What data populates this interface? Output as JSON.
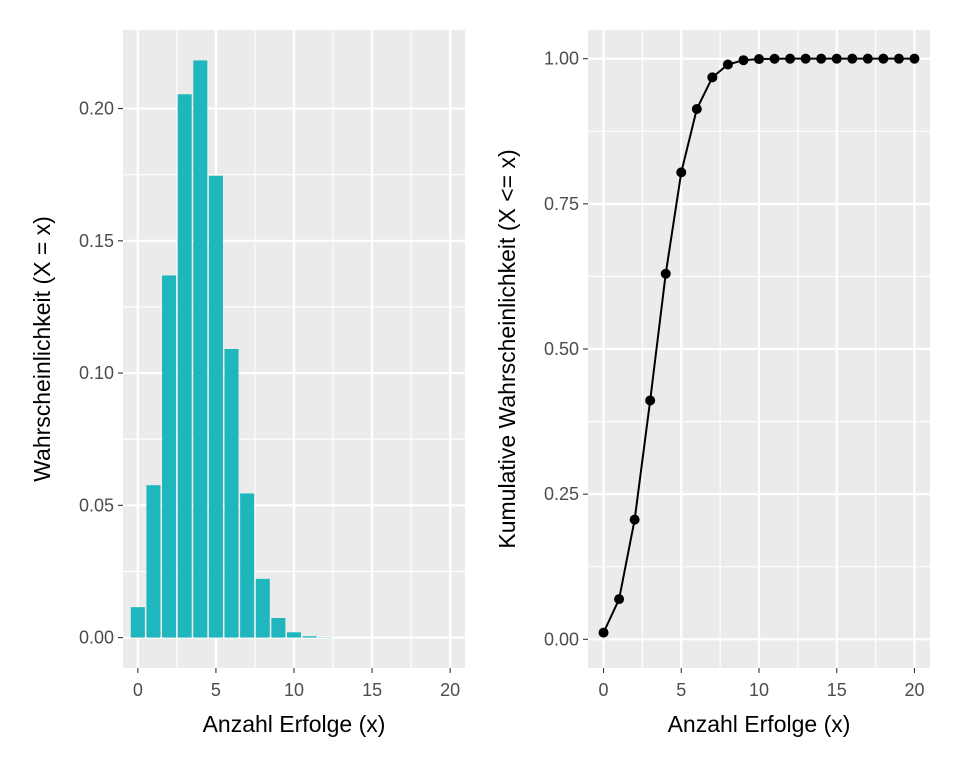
{
  "chart_data": [
    {
      "type": "bar",
      "xlabel": "Anzahl Erfolge (x)",
      "ylabel": "Wahrscheinlichkeit (X = x)",
      "color": "#1FB7BD",
      "x": [
        0,
        1,
        2,
        3,
        4,
        5,
        6,
        7,
        8,
        9,
        10,
        11,
        12,
        13,
        14,
        15,
        16,
        17,
        18,
        19,
        20
      ],
      "values": [
        0.0115,
        0.0576,
        0.1369,
        0.2054,
        0.2182,
        0.1746,
        0.1091,
        0.0545,
        0.0222,
        0.0074,
        0.002,
        0.0005,
        0.0001,
        0.0,
        0.0,
        0.0,
        0.0,
        0.0,
        0.0,
        0.0,
        0.0
      ],
      "xlim": [
        -0.95,
        20.95
      ],
      "ylim": [
        -0.0115,
        0.2297
      ],
      "x_ticks": [
        0,
        5,
        10,
        15,
        20
      ],
      "x_tick_labels": [
        "0",
        "5",
        "10",
        "15",
        "20"
      ],
      "y_ticks": [
        0,
        0.05,
        0.1,
        0.15,
        0.2
      ],
      "y_tick_labels": [
        "0.00",
        "0.05",
        "0.10",
        "0.15",
        "0.20"
      ],
      "grid": true,
      "legend": "none"
    },
    {
      "type": "line",
      "xlabel": "Anzahl Erfolge (x)",
      "ylabel": "Kumulative Wahrscheinlichkeit (X <= x)",
      "color": "#000000",
      "markers": true,
      "x": [
        0,
        1,
        2,
        3,
        4,
        5,
        6,
        7,
        8,
        9,
        10,
        11,
        12,
        13,
        14,
        15,
        16,
        17,
        18,
        19,
        20
      ],
      "y": [
        0.0115,
        0.0692,
        0.2061,
        0.4114,
        0.6296,
        0.8042,
        0.9133,
        0.9679,
        0.99,
        0.9974,
        0.9994,
        0.9999,
        1.0,
        1.0,
        1.0,
        1.0,
        1.0,
        1.0,
        1.0,
        1.0,
        1.0
      ],
      "xlim": [
        -1.0,
        21.0
      ],
      "ylim": [
        -0.0494,
        1.0494
      ],
      "x_ticks": [
        0,
        5,
        10,
        15,
        20
      ],
      "x_tick_labels": [
        "0",
        "5",
        "10",
        "15",
        "20"
      ],
      "y_ticks": [
        0,
        0.25,
        0.5,
        0.75,
        1.0
      ],
      "y_tick_labels": [
        "0.00",
        "0.25",
        "0.50",
        "0.75",
        "1.00"
      ],
      "grid": true,
      "legend": "none"
    }
  ]
}
